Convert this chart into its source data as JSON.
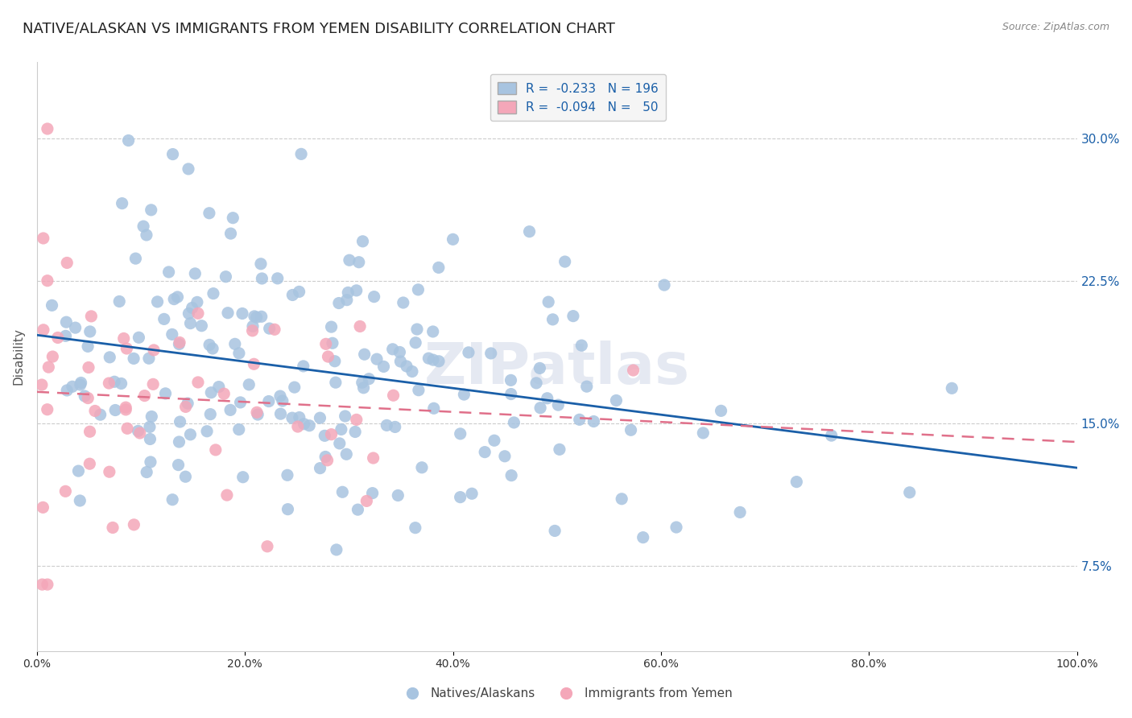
{
  "title": "NATIVE/ALASKAN VS IMMIGRANTS FROM YEMEN DISABILITY CORRELATION CHART",
  "source": "Source: ZipAtlas.com",
  "ylabel": "Disability",
  "ytick_labels": [
    "7.5%",
    "15.0%",
    "22.5%",
    "30.0%"
  ],
  "ytick_values": [
    0.075,
    0.15,
    0.225,
    0.3
  ],
  "xrange": [
    0.0,
    1.0
  ],
  "yrange": [
    0.03,
    0.34
  ],
  "blue_R": -0.233,
  "blue_N": 196,
  "pink_R": -0.094,
  "pink_N": 50,
  "blue_color": "#a8c4e0",
  "pink_color": "#f4a7b9",
  "blue_line_color": "#1a5fa8",
  "pink_line_color": "#e0708a",
  "watermark": "ZIPatlas",
  "background_color": "#ffffff",
  "title_fontsize": 13,
  "axis_label_color": "#1a5fa8",
  "source_fontsize": 9,
  "seed_blue": 42,
  "seed_pink": 7
}
